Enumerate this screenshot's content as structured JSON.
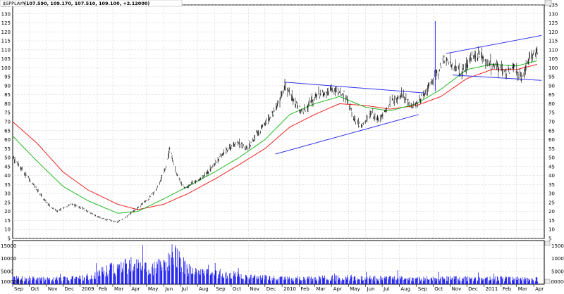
{
  "header": {
    "symbol": "$SPPLAYN",
    "quote": "(107.590, 109.170, 107.510, 109.100, +2.12000)"
  },
  "chart_data": {
    "type": "candlestick",
    "title": "",
    "price_axis": {
      "min": 5,
      "max": 135,
      "ticks": [
        5,
        10,
        15,
        20,
        25,
        30,
        35,
        40,
        45,
        50,
        55,
        60,
        65,
        70,
        75,
        80,
        85,
        90,
        95,
        100,
        105,
        110,
        115,
        120,
        125,
        130,
        135
      ]
    },
    "volume_axis": {
      "left_ticks": [
        "5000",
        "10000",
        "15000"
      ],
      "right_ticks": [
        "5000",
        "10000",
        "15000"
      ],
      "base_left": "1000000",
      "base_right": "1000000"
    },
    "x_axis_labels": [
      "Sep",
      "Oct",
      "Nov",
      "Dec",
      "2009",
      "Feb",
      "Mar",
      "Apr",
      "May",
      "Jun",
      "Jul",
      "Aug",
      "Sep",
      "Oct",
      "Nov",
      "Dec",
      "2010",
      "Feb",
      "Mar",
      "Apr",
      "May",
      "Jun",
      "Jul",
      "Aug",
      "Sep",
      "Oct",
      "Nov",
      "Dec",
      "2011",
      "Feb",
      "Mar",
      "Apr"
    ],
    "price_anchors": [
      [
        "2008-09-01",
        50
      ],
      [
        "2008-10-01",
        38
      ],
      [
        "2008-10-20",
        30
      ],
      [
        "2008-11-01",
        25
      ],
      [
        "2008-11-20",
        20
      ],
      [
        "2008-12-15",
        24
      ],
      [
        "2009-01-05",
        22
      ],
      [
        "2009-02-01",
        17
      ],
      [
        "2009-03-09",
        14
      ],
      [
        "2009-03-25",
        17
      ],
      [
        "2009-04-15",
        22
      ],
      [
        "2009-05-05",
        27
      ],
      [
        "2009-05-20",
        33
      ],
      [
        "2009-06-05",
        45
      ],
      [
        "2009-06-12",
        55
      ],
      [
        "2009-06-25",
        40
      ],
      [
        "2009-07-10",
        33
      ],
      [
        "2009-07-25",
        36
      ],
      [
        "2009-08-15",
        40
      ],
      [
        "2009-09-10",
        50
      ],
      [
        "2009-09-25",
        55
      ],
      [
        "2009-10-15",
        58
      ],
      [
        "2009-11-01",
        55
      ],
      [
        "2009-11-20",
        65
      ],
      [
        "2009-12-10",
        72
      ],
      [
        "2009-12-25",
        80
      ],
      [
        "2010-01-08",
        90
      ],
      [
        "2010-01-25",
        80
      ],
      [
        "2010-02-08",
        75
      ],
      [
        "2010-02-25",
        82
      ],
      [
        "2010-03-15",
        86
      ],
      [
        "2010-04-05",
        88
      ],
      [
        "2010-04-25",
        85
      ],
      [
        "2010-05-10",
        72
      ],
      [
        "2010-05-25",
        67
      ],
      [
        "2010-06-10",
        75
      ],
      [
        "2010-06-25",
        70
      ],
      [
        "2010-07-15",
        80
      ],
      [
        "2010-08-05",
        85
      ],
      [
        "2010-08-25",
        78
      ],
      [
        "2010-09-10",
        83
      ],
      [
        "2010-09-25",
        90
      ],
      [
        "2010-10-10",
        98
      ],
      [
        "2010-10-20",
        105
      ],
      [
        "2010-11-05",
        102
      ],
      [
        "2010-11-20",
        97
      ],
      [
        "2010-12-05",
        104
      ],
      [
        "2010-12-25",
        108
      ],
      [
        "2011-01-10",
        103
      ],
      [
        "2011-01-25",
        100
      ],
      [
        "2011-02-10",
        97
      ],
      [
        "2011-02-25",
        100
      ],
      [
        "2011-03-10",
        94
      ],
      [
        "2011-03-20",
        102
      ],
      [
        "2011-03-31",
        108
      ],
      [
        "2011-04-08",
        109
      ]
    ],
    "moving_average_green": [
      [
        "2008-09-01",
        62
      ],
      [
        "2008-10-15",
        48
      ],
      [
        "2008-12-01",
        34
      ],
      [
        "2009-01-15",
        26
      ],
      [
        "2009-03-10",
        19
      ],
      [
        "2009-04-15",
        20
      ],
      [
        "2009-06-01",
        27
      ],
      [
        "2009-07-15",
        34
      ],
      [
        "2009-09-01",
        42
      ],
      [
        "2009-10-15",
        50
      ],
      [
        "2009-12-01",
        60
      ],
      [
        "2010-01-15",
        74
      ],
      [
        "2010-03-01",
        80
      ],
      [
        "2010-04-15",
        84
      ],
      [
        "2010-06-01",
        78
      ],
      [
        "2010-07-15",
        76
      ],
      [
        "2010-09-01",
        80
      ],
      [
        "2010-10-15",
        88
      ],
      [
        "2010-12-01",
        99
      ],
      [
        "2011-01-15",
        102
      ],
      [
        "2011-03-01",
        101
      ],
      [
        "2011-04-08",
        104
      ]
    ],
    "moving_average_red": [
      [
        "2008-09-01",
        70
      ],
      [
        "2008-10-15",
        58
      ],
      [
        "2008-12-01",
        42
      ],
      [
        "2009-01-15",
        32
      ],
      [
        "2009-03-10",
        24
      ],
      [
        "2009-04-15",
        21
      ],
      [
        "2009-06-01",
        24
      ],
      [
        "2009-07-15",
        30
      ],
      [
        "2009-09-01",
        38
      ],
      [
        "2009-10-15",
        46
      ],
      [
        "2009-12-01",
        55
      ],
      [
        "2010-01-15",
        67
      ],
      [
        "2010-03-01",
        74
      ],
      [
        "2010-04-15",
        80
      ],
      [
        "2010-06-01",
        79
      ],
      [
        "2010-07-15",
        77
      ],
      [
        "2010-09-01",
        79
      ],
      [
        "2010-10-15",
        84
      ],
      [
        "2010-12-01",
        94
      ],
      [
        "2011-01-15",
        99
      ],
      [
        "2011-03-01",
        99
      ],
      [
        "2011-04-08",
        102
      ]
    ],
    "trend_lines": [
      {
        "from": [
          "2010-01-05",
          92
        ],
        "to": [
          "2010-09-15",
          86
        ]
      },
      {
        "from": [
          "2009-12-20",
          52
        ],
        "to": [
          "2010-09-05",
          74
        ]
      },
      {
        "from": [
          "2010-10-05",
          87
        ],
        "to": [
          "2010-10-05",
          126
        ]
      },
      {
        "from": [
          "2010-10-25",
          108
        ],
        "to": [
          "2011-04-15",
          118
        ]
      },
      {
        "from": [
          "2010-11-05",
          96
        ],
        "to": [
          "2011-04-15",
          93
        ]
      }
    ],
    "volume_levels": [
      [
        "2008-09-01",
        2500
      ],
      [
        "2008-11-01",
        2300
      ],
      [
        "2009-01-01",
        2500
      ],
      [
        "2009-02-01",
        4500
      ],
      [
        "2009-03-01",
        6500
      ],
      [
        "2009-04-01",
        8000
      ],
      [
        "2009-05-01",
        6500
      ],
      [
        "2009-06-01",
        9000
      ],
      [
        "2009-06-20",
        13000
      ],
      [
        "2009-07-15",
        6000
      ],
      [
        "2009-08-15",
        5000
      ],
      [
        "2009-09-15",
        4500
      ],
      [
        "2009-11-01",
        3000
      ],
      [
        "2010-01-01",
        2300
      ],
      [
        "2010-05-01",
        2700
      ],
      [
        "2010-08-01",
        2400
      ],
      [
        "2010-11-01",
        2300
      ],
      [
        "2011-02-01",
        2400
      ],
      [
        "2011-04-08",
        2200
      ]
    ],
    "colors": {
      "price_bars": "#000000",
      "ma_green": "#22bb22",
      "ma_red": "#ee2222",
      "trend_lines": "#3333ee",
      "volume": "#1111ee",
      "grid": "#c8c8c8"
    }
  }
}
